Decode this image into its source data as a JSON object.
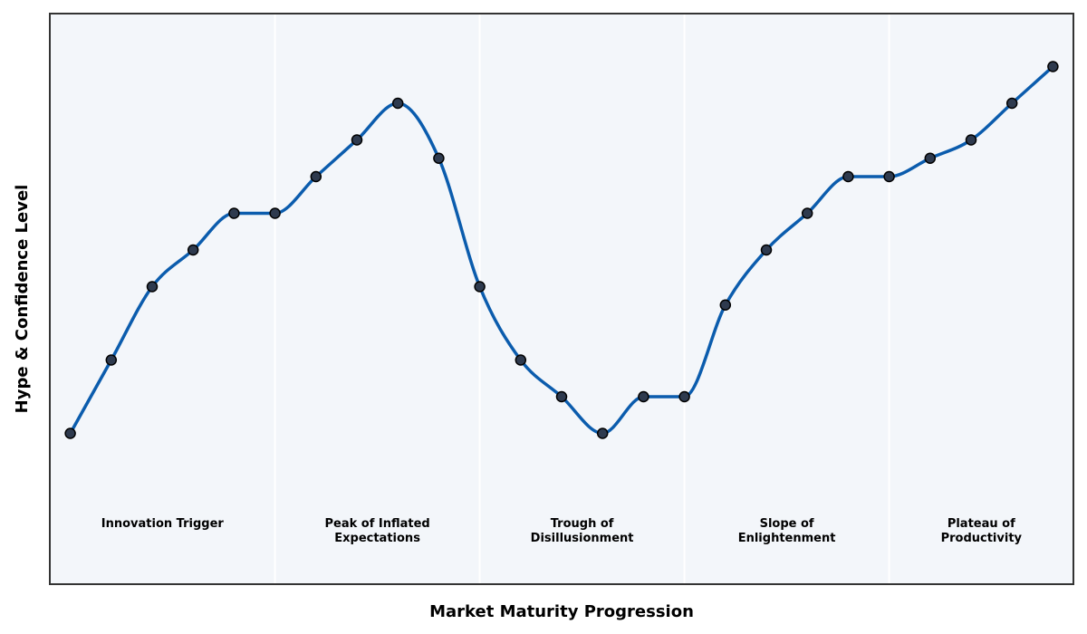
{
  "chart_data": {
    "type": "line",
    "title": "",
    "xlabel": "Market Maturity Progression",
    "ylabel": "Hype & Confidence Level",
    "x": [
      0,
      1,
      2,
      3,
      4,
      5,
      6,
      7,
      8,
      9,
      10,
      11,
      12,
      13,
      14,
      15,
      16,
      17,
      18,
      19,
      20,
      21,
      22,
      23,
      24
    ],
    "series": [
      {
        "values": [
          22,
          40,
          58,
          67,
          76,
          76,
          85,
          94,
          103,
          89.5,
          58,
          40,
          31,
          22,
          31,
          31,
          53.5,
          67,
          76,
          85,
          85,
          89.5,
          94,
          103,
          112
        ],
        "color": "#0b5cad",
        "marker_fill": "#2e3a4e",
        "marker_edge": "#000000"
      }
    ],
    "xlim": [
      -0.5,
      24.5
    ],
    "ylim": [
      -15,
      125
    ],
    "phases": [
      {
        "start": -0.5,
        "end": 5,
        "label": [
          "Innovation Trigger"
        ]
      },
      {
        "start": 5,
        "end": 10,
        "label": [
          "Peak of Inflated",
          "Expectations"
        ]
      },
      {
        "start": 10,
        "end": 15,
        "label": [
          "Trough of",
          "Disillusionment"
        ]
      },
      {
        "start": 15,
        "end": 20,
        "label": [
          "Slope of",
          "Enlightenment"
        ]
      },
      {
        "start": 20,
        "end": 24.5,
        "label": [
          "Plateau of",
          "Productivity"
        ]
      }
    ],
    "phase_label_y": -1,
    "grid": false,
    "legend": "none",
    "colors": {
      "plot_background": "#f3f6fa",
      "phase_divider": "#ffffff",
      "frame": "#333333"
    }
  }
}
